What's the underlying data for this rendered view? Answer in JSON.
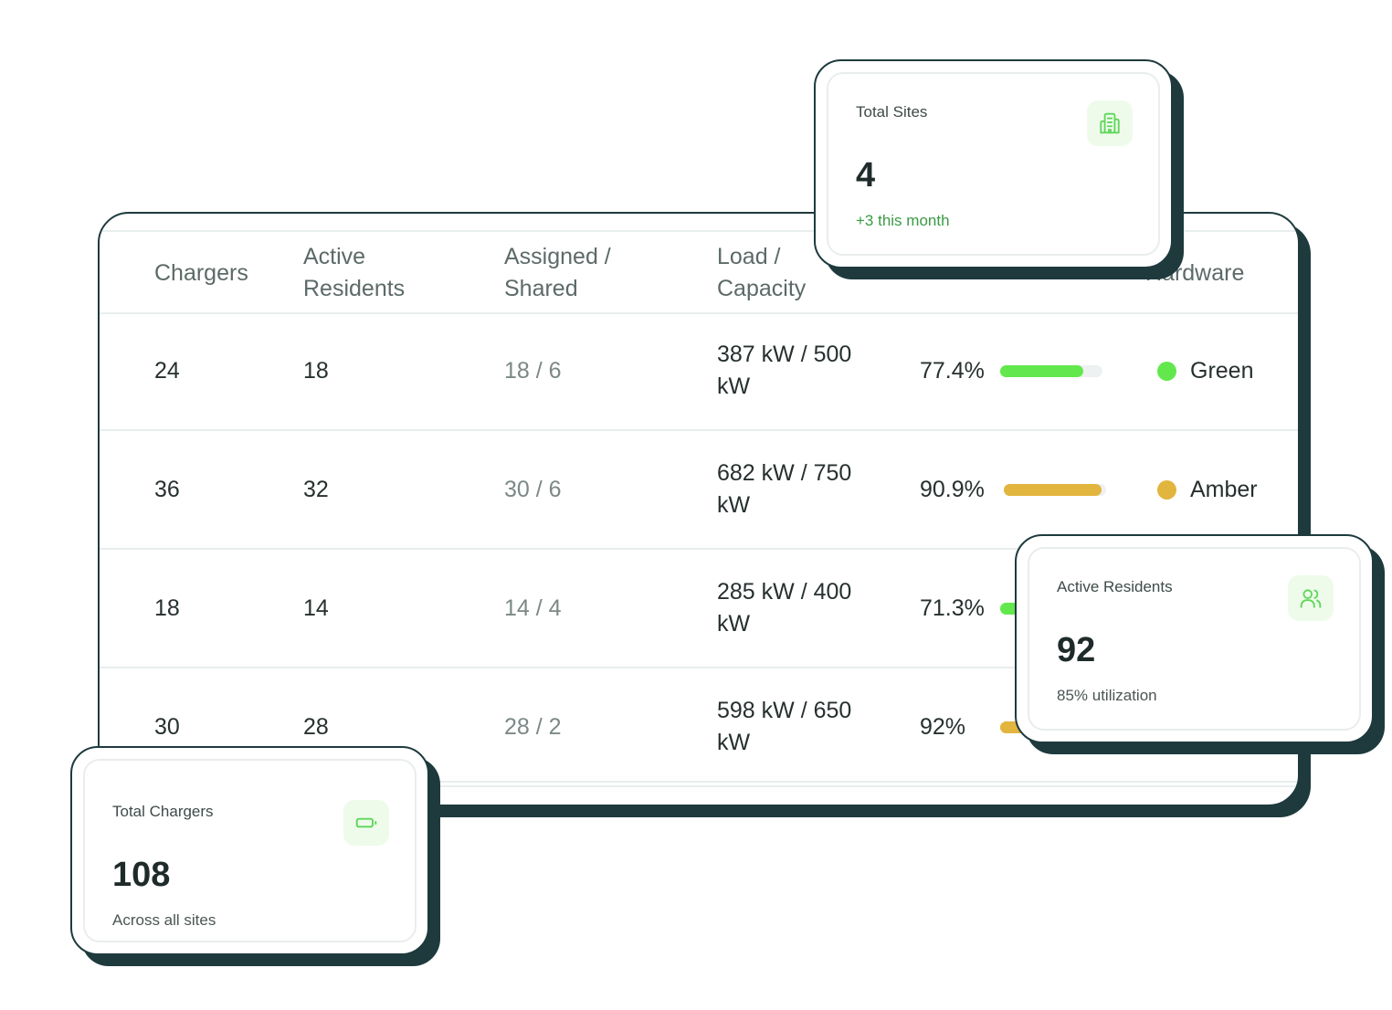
{
  "table": {
    "headers": {
      "chargers": "Chargers",
      "active_residents": [
        "Active",
        "Residents"
      ],
      "assigned_shared": [
        "Assigned /",
        "Shared"
      ],
      "load_capacity": [
        "Load /",
        "Capacity"
      ],
      "hardware": "Hardware"
    },
    "rows": [
      {
        "chargers": "24",
        "residents": "18",
        "assigned": "18 / 6",
        "load": [
          "387 kW / 500",
          "kW"
        ],
        "pct": "77.4%",
        "fill": 0.774,
        "status": "Green",
        "status_color": "#62e84c",
        "bar_color": "#62e84c"
      },
      {
        "chargers": "36",
        "residents": "32",
        "assigned": "30 / 6",
        "load": [
          "682 kW / 750",
          "kW"
        ],
        "pct": "90.9%",
        "fill": 0.909,
        "status": "Amber",
        "status_color": "#e2b53e",
        "bar_color": "#e2b53e"
      },
      {
        "chargers": "18",
        "residents": "14",
        "assigned": "14 / 4",
        "load": [
          "285 kW / 400",
          "kW"
        ],
        "pct": "71.3%",
        "fill": 0.713,
        "status": "",
        "status_color": "#62e84c",
        "bar_color": "#62e84c"
      },
      {
        "chargers": "30",
        "residents": "28",
        "assigned": "28 / 2",
        "load": [
          "598 kW / 650",
          "kW"
        ],
        "pct": "92%",
        "fill": 0.92,
        "status": "",
        "status_color": "#e2b53e",
        "bar_color": "#e2b53e"
      }
    ]
  },
  "cards": {
    "total_sites": {
      "label": "Total Sites",
      "value": "4",
      "sub": "+3 this month",
      "icon": "building-icon"
    },
    "active_residents": {
      "label": "Active Residents",
      "value": "92",
      "sub": "85% utilization",
      "icon": "users-icon"
    },
    "total_chargers": {
      "label": "Total Chargers",
      "value": "108",
      "sub": "Across all sites",
      "icon": "battery-icon"
    }
  },
  "colors": {
    "dark": "#1e3a3d",
    "accent_green": "#62e84c",
    "amber": "#e2b53e",
    "icon_green": "#5fd65a"
  }
}
